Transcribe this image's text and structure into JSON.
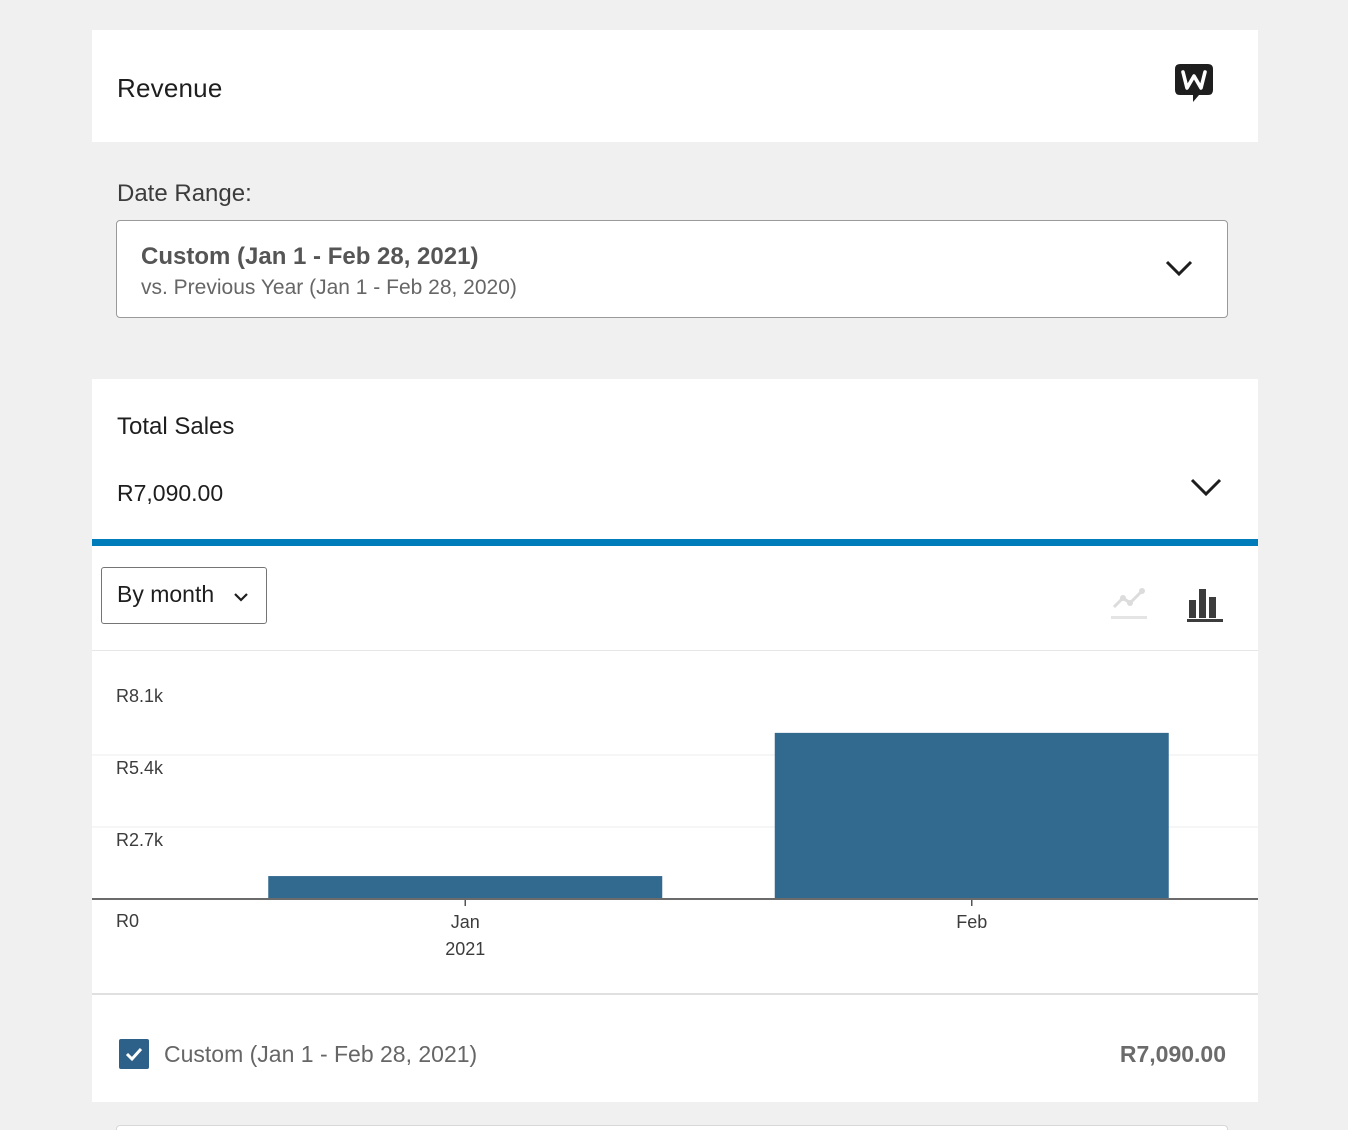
{
  "header": {
    "title": "Revenue",
    "icon": "woocommerce-w-icon"
  },
  "date_range": {
    "label": "Date Range:",
    "primary": "Custom (Jan 1 - Feb 28, 2021)",
    "secondary": "vs. Previous Year (Jan 1 - Feb 28, 2020)"
  },
  "summary": {
    "label": "Total Sales",
    "value": "R7,090.00",
    "accent_color": "#007cba"
  },
  "chart_controls": {
    "interval": "By month",
    "line_toggle_icon": "line-chart-icon",
    "bar_toggle_icon": "bar-chart-icon",
    "active_type": "bar"
  },
  "chart_data": {
    "type": "bar",
    "categories": [
      "Jan",
      "Feb"
    ],
    "category_sublabels": [
      "2021",
      ""
    ],
    "values": [
      860,
      6230
    ],
    "ylim": [
      0,
      8100
    ],
    "yticks": [
      0,
      2700,
      5400,
      8100
    ],
    "ytick_labels": [
      "R0",
      "R2.7k",
      "R5.4k",
      "R8.1k"
    ],
    "grid": true,
    "bar_color": "#32698f",
    "title": "",
    "xlabel": "",
    "ylabel": ""
  },
  "legend": {
    "label": "Custom (Jan 1 - Feb 28, 2021)",
    "value": "R7,090.00",
    "checked": true,
    "color": "#2e6189"
  }
}
